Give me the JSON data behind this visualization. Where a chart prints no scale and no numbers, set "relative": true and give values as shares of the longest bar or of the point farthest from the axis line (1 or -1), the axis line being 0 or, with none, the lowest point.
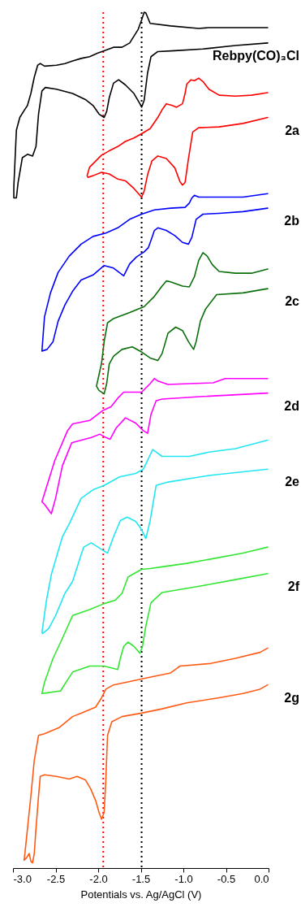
{
  "chart_data": {
    "type": "line",
    "relative": true,
    "xlabel": "Potentials vs. Ag/AgCl (V)",
    "xlim": [
      -3,
      0
    ],
    "xticks": [
      {
        "value": -3,
        "label": "-3.0"
      },
      {
        "value": -2.5,
        "label": "-2.5"
      },
      {
        "value": -2,
        "label": "-2.0"
      },
      {
        "value": -1.5,
        "label": "-1.5"
      },
      {
        "value": -1,
        "label": "-1.0"
      },
      {
        "value": -0.5,
        "label": "-0.5"
      },
      {
        "value": 0,
        "label": "0.0"
      }
    ],
    "grid": false,
    "line_style": "solid",
    "marker": "none",
    "ref_lines": [
      {
        "axis": "x",
        "value": -1.94,
        "color": "#ff0000",
        "line_style": "dotted"
      },
      {
        "axis": "x",
        "value": -1.49,
        "color": "#000000",
        "line_style": "dotted"
      }
    ],
    "series": [
      {
        "name": "Rebpy(CO)₃Cl",
        "color": "#000000",
        "x": [
          -0.01,
          -0.3,
          -0.7,
          -0.82,
          -1.15,
          -1.39,
          -1.44,
          -1.46,
          -1.49,
          -1.53,
          -1.63,
          -1.72,
          -1.82,
          -1.93,
          -2.01,
          -2.1,
          -2.2,
          -2.3,
          -2.39,
          -2.49,
          -2.63,
          -2.68,
          -2.71,
          -2.75,
          -2.79,
          -2.83,
          -2.87,
          -2.92,
          -2.96,
          -2.99,
          -2.99,
          -2.96,
          -2.94,
          -2.89,
          -2.83,
          -2.77,
          -2.73,
          -2.7,
          -2.66,
          -2.62,
          -2.49,
          -2.3,
          -2.15,
          -2.06,
          -1.99,
          -1.93,
          -1.9,
          -1.87,
          -1.82,
          -1.76,
          -1.68,
          -1.58,
          -1.51,
          -1.49,
          -1.46,
          -1.42,
          -1.38,
          -1.3,
          -1.1,
          -0.77,
          -0.39,
          -0.01
        ],
        "values": [
          0.982,
          0.982,
          0.982,
          0.981,
          0.984,
          0.987,
          0.999,
          1,
          0.991,
          0.98,
          0.964,
          0.959,
          0.959,
          0.955,
          0.952,
          0.948,
          0.946,
          0.943,
          0.94,
          0.938,
          0.937,
          0.94,
          0.938,
          0.924,
          0.905,
          0.891,
          0.885,
          0.877,
          0.862,
          0.796,
          0.783,
          0.783,
          0.801,
          0.83,
          0.834,
          0.832,
          0.843,
          0.881,
          0.908,
          0.912,
          0.91,
          0.905,
          0.898,
          0.891,
          0.881,
          0.877,
          0.884,
          0.9,
          0.917,
          0.921,
          0.915,
          0.905,
          0.893,
          0.889,
          0.897,
          0.929,
          0.948,
          0.954,
          0.955,
          0.957,
          0.961,
          0.964
        ]
      },
      {
        "name": "2a",
        "color": "#ff0000",
        "x": [
          -0.01,
          -0.2,
          -0.39,
          -0.58,
          -0.7,
          -0.77,
          -0.82,
          -0.87,
          -0.91,
          -0.96,
          -0.98,
          -1.01,
          -1.08,
          -1.13,
          -1.2,
          -1.25,
          -1.3,
          -1.39,
          -1.49,
          -1.58,
          -1.68,
          -1.77,
          -1.87,
          -1.96,
          -2.1,
          -2.13,
          -2.12,
          -2.06,
          -1.96,
          -1.87,
          -1.77,
          -1.68,
          -1.58,
          -1.51,
          -1.49,
          -1.46,
          -1.42,
          -1.37,
          -1.3,
          -1.2,
          -1.1,
          -1.04,
          -1.01,
          -0.98,
          -0.94,
          -0.89,
          -0.82,
          -0.58,
          -0.3,
          -0.01
        ],
        "values": [
          0.906,
          0.903,
          0.902,
          0.903,
          0.91,
          0.919,
          0.923,
          0.92,
          0.921,
          0.916,
          0.905,
          0.893,
          0.889,
          0.891,
          0.893,
          0.886,
          0.877,
          0.864,
          0.858,
          0.853,
          0.849,
          0.843,
          0.838,
          0.833,
          0.819,
          0.809,
          0.807,
          0.809,
          0.813,
          0.811,
          0.805,
          0.803,
          0.794,
          0.786,
          0.784,
          0.791,
          0.81,
          0.826,
          0.832,
          0.829,
          0.818,
          0.802,
          0.798,
          0.801,
          0.829,
          0.86,
          0.865,
          0.866,
          0.87,
          0.877
        ]
      },
      {
        "name": "2b",
        "color": "#0000ff",
        "x": [
          -0.01,
          -0.3,
          -0.68,
          -0.82,
          -0.87,
          -0.9,
          -0.93,
          -0.98,
          -1.15,
          -1.34,
          -1.49,
          -1.63,
          -1.77,
          -1.91,
          -2.06,
          -2.2,
          -2.34,
          -2.47,
          -2.56,
          -2.63,
          -2.66,
          -2.6,
          -2.53,
          -2.47,
          -2.39,
          -2.3,
          -2.2,
          -2.06,
          -1.93,
          -1.82,
          -1.7,
          -1.63,
          -1.55,
          -1.46,
          -1.41,
          -1.36,
          -1.34,
          -1.3,
          -1.2,
          -1.1,
          -1.01,
          -0.94,
          -0.9,
          -0.85,
          -0.77,
          -0.58,
          -0.3,
          -0.01
        ],
        "values": [
          0.788,
          0.784,
          0.784,
          0.784,
          0.786,
          0.783,
          0.777,
          0.772,
          0.771,
          0.769,
          0.764,
          0.758,
          0.748,
          0.742,
          0.738,
          0.729,
          0.715,
          0.696,
          0.672,
          0.644,
          0.604,
          0.606,
          0.615,
          0.639,
          0.658,
          0.674,
          0.687,
          0.693,
          0.704,
          0.701,
          0.692,
          0.706,
          0.714,
          0.72,
          0.725,
          0.739,
          0.745,
          0.748,
          0.745,
          0.739,
          0.731,
          0.729,
          0.737,
          0.758,
          0.764,
          0.765,
          0.767,
          0.771
        ]
      },
      {
        "name": "2c",
        "color": "#0a6e0a",
        "x": [
          -0.01,
          -0.2,
          -0.39,
          -0.58,
          -0.66,
          -0.72,
          -0.77,
          -0.82,
          -0.87,
          -0.93,
          -1.01,
          -1.15,
          -1.2,
          -1.25,
          -1.34,
          -1.46,
          -1.63,
          -1.82,
          -1.89,
          -1.93,
          -1.96,
          -2.02,
          -1.99,
          -1.93,
          -1.9,
          -1.87,
          -1.82,
          -1.72,
          -1.6,
          -1.49,
          -1.39,
          -1.3,
          -1.25,
          -1.18,
          -1.09,
          -1.01,
          -0.94,
          -0.88,
          -0.85,
          -0.8,
          -0.74,
          -0.61,
          -0.3,
          -0.01
        ],
        "values": [
          0.7,
          0.695,
          0.695,
          0.697,
          0.705,
          0.715,
          0.719,
          0.71,
          0.691,
          0.679,
          0.68,
          0.685,
          0.686,
          0.68,
          0.668,
          0.656,
          0.649,
          0.642,
          0.637,
          0.615,
          0.59,
          0.563,
          0.558,
          0.554,
          0.566,
          0.589,
          0.598,
          0.606,
          0.609,
          0.603,
          0.596,
          0.593,
          0.601,
          0.625,
          0.632,
          0.628,
          0.615,
          0.606,
          0.615,
          0.639,
          0.653,
          0.67,
          0.672,
          0.677
        ]
      },
      {
        "name": "2d",
        "color": "#ff00ff",
        "x": [
          -0.01,
          -0.39,
          -0.51,
          -0.65,
          -0.93,
          -1.18,
          -1.3,
          -1.34,
          -1.39,
          -1.49,
          -1.7,
          -1.77,
          -1.85,
          -1.94,
          -2.1,
          -2.3,
          -2.36,
          -2.51,
          -2.66,
          -2.63,
          -2.55,
          -2.5,
          -2.42,
          -2.31,
          -2.08,
          -1.98,
          -1.91,
          -1.86,
          -1.79,
          -1.68,
          -1.56,
          -1.47,
          -1.42,
          -1.38,
          -1.32,
          -1.25,
          -0.77,
          -0.01
        ],
        "values": [
          0.572,
          0.572,
          0.572,
          0.567,
          0.566,
          0.565,
          0.569,
          0.572,
          0.566,
          0.556,
          0.556,
          0.549,
          0.539,
          0.535,
          0.523,
          0.519,
          0.511,
          0.476,
          0.428,
          0.425,
          0.414,
          0.432,
          0.47,
          0.497,
          0.503,
          0.507,
          0.503,
          0.501,
          0.514,
          0.526,
          0.52,
          0.511,
          0.508,
          0.53,
          0.546,
          0.548,
          0.551,
          0.555
        ]
      },
      {
        "name": "2e",
        "color": "#22e6f2",
        "x": [
          -0.01,
          -0.39,
          -0.7,
          -0.93,
          -1.25,
          -1.36,
          -1.47,
          -1.56,
          -1.75,
          -1.93,
          -2.06,
          -2.2,
          -2.34,
          -2.42,
          -2.55,
          -2.61,
          -2.66,
          -2.65,
          -2.58,
          -2.5,
          -2.39,
          -2.3,
          -2.2,
          -2.17,
          -2.08,
          -1.94,
          -1.89,
          -1.82,
          -1.74,
          -1.66,
          -1.56,
          -1.5,
          -1.44,
          -1.39,
          -1.32,
          -1.18,
          -0.68,
          -0.01
        ],
        "values": [
          0.5,
          0.49,
          0.486,
          0.481,
          0.481,
          0.489,
          0.466,
          0.461,
          0.457,
          0.447,
          0.442,
          0.432,
          0.402,
          0.387,
          0.343,
          0.311,
          0.275,
          0.274,
          0.28,
          0.295,
          0.321,
          0.335,
          0.366,
          0.375,
          0.38,
          0.371,
          0.368,
          0.387,
          0.406,
          0.41,
          0.405,
          0.397,
          0.385,
          0.406,
          0.447,
          0.451,
          0.459,
          0.466
        ]
      },
      {
        "name": "2f",
        "color": "#33e633",
        "x": [
          -0.01,
          -0.3,
          -0.68,
          -0.96,
          -1.25,
          -1.39,
          -1.49,
          -1.58,
          -1.65,
          -1.72,
          -1.8,
          -1.93,
          -2.1,
          -2.3,
          -2.44,
          -2.53,
          -2.63,
          -2.66,
          -2.58,
          -2.44,
          -2.41,
          -2.3,
          -2.1,
          -1.93,
          -1.77,
          -1.74,
          -1.7,
          -1.65,
          -1.58,
          -1.51,
          -1.48,
          -1.44,
          -1.38,
          -1.25,
          -0.77,
          -0.39,
          -0.01
        ],
        "values": [
          0.375,
          0.368,
          0.361,
          0.356,
          0.352,
          0.35,
          0.349,
          0.344,
          0.34,
          0.321,
          0.313,
          0.309,
          0.302,
          0.295,
          0.264,
          0.245,
          0.217,
          0.204,
          0.205,
          0.207,
          0.212,
          0.229,
          0.236,
          0.236,
          0.232,
          0.245,
          0.259,
          0.264,
          0.259,
          0.251,
          0.259,
          0.283,
          0.31,
          0.322,
          0.33,
          0.337,
          0.344
        ]
      },
      {
        "name": "2g",
        "color": "#ff5a14",
        "x": [
          -0.01,
          -0.1,
          -0.39,
          -0.68,
          -1.04,
          -1.08,
          -1.15,
          -1.44,
          -1.63,
          -1.82,
          -1.91,
          -1.96,
          -2.03,
          -2.2,
          -2.3,
          -2.46,
          -2.63,
          -2.7,
          -2.75,
          -2.79,
          -2.83,
          -2.86,
          -2.87,
          -2.84,
          -2.81,
          -2.79,
          -2.77,
          -2.75,
          -2.73,
          -2.7,
          -2.68,
          -2.63,
          -2.49,
          -2.34,
          -2.25,
          -2.15,
          -2.09,
          -2.03,
          -1.99,
          -1.96,
          -1.93,
          -1.91,
          -1.89,
          -1.84,
          -1.72,
          -1.49,
          -1.25,
          -0.96,
          -0.58,
          -0.3,
          -0.1,
          -0.01
        ],
        "values": [
          0.257,
          0.252,
          0.245,
          0.239,
          0.236,
          0.233,
          0.228,
          0.222,
          0.218,
          0.214,
          0.209,
          0.199,
          0.188,
          0.181,
          0.177,
          0.164,
          0.157,
          0.155,
          0.126,
          0.084,
          0.046,
          0.017,
          0.009,
          0.012,
          0.017,
          0.008,
          0.006,
          0.017,
          0.046,
          0.084,
          0.107,
          0.109,
          0.107,
          0.104,
          0.107,
          0.103,
          0.093,
          0.079,
          0.065,
          0.057,
          0.065,
          0.103,
          0.155,
          0.171,
          0.177,
          0.181,
          0.186,
          0.193,
          0.199,
          0.204,
          0.209,
          0.214
        ]
      }
    ]
  }
}
